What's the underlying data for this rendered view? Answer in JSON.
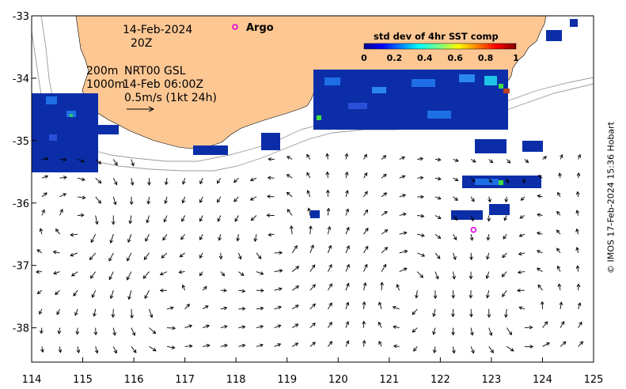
{
  "map": {
    "x_ticks": [
      "114",
      "115",
      "116",
      "117",
      "118",
      "119",
      "120",
      "121",
      "122",
      "123",
      "124",
      "125"
    ],
    "y_ticks": [
      "-33",
      "-34",
      "-35",
      "-36",
      "-37",
      "-38"
    ],
    "x_range": [
      114,
      125
    ],
    "y_range": [
      -38.55,
      -33
    ],
    "date_line1": "14-Feb-2024",
    "date_line2": "20Z",
    "depth_200": "200m",
    "depth_1000": "1000m",
    "product": "NRT00 GSL",
    "product_time": "14-Feb 06:00Z",
    "scale_label": "0.5m/s (1kt 24h)",
    "argo_label": "Argo",
    "argo_pos": [
      122.65,
      -36.43
    ],
    "colorbar_title": "std dev of 4hr SST comp",
    "colorbar_ticks": [
      "0",
      "0.2",
      "0.4",
      "0.6",
      "0.8",
      "1"
    ],
    "colors": {
      "land": "#fdc794",
      "argo": "#e000e0",
      "sst_low": "#0b2ea8",
      "vectors": "#000000"
    }
  },
  "credit": "© IMOS 17-Feb-2024 15:36 Hobart"
}
